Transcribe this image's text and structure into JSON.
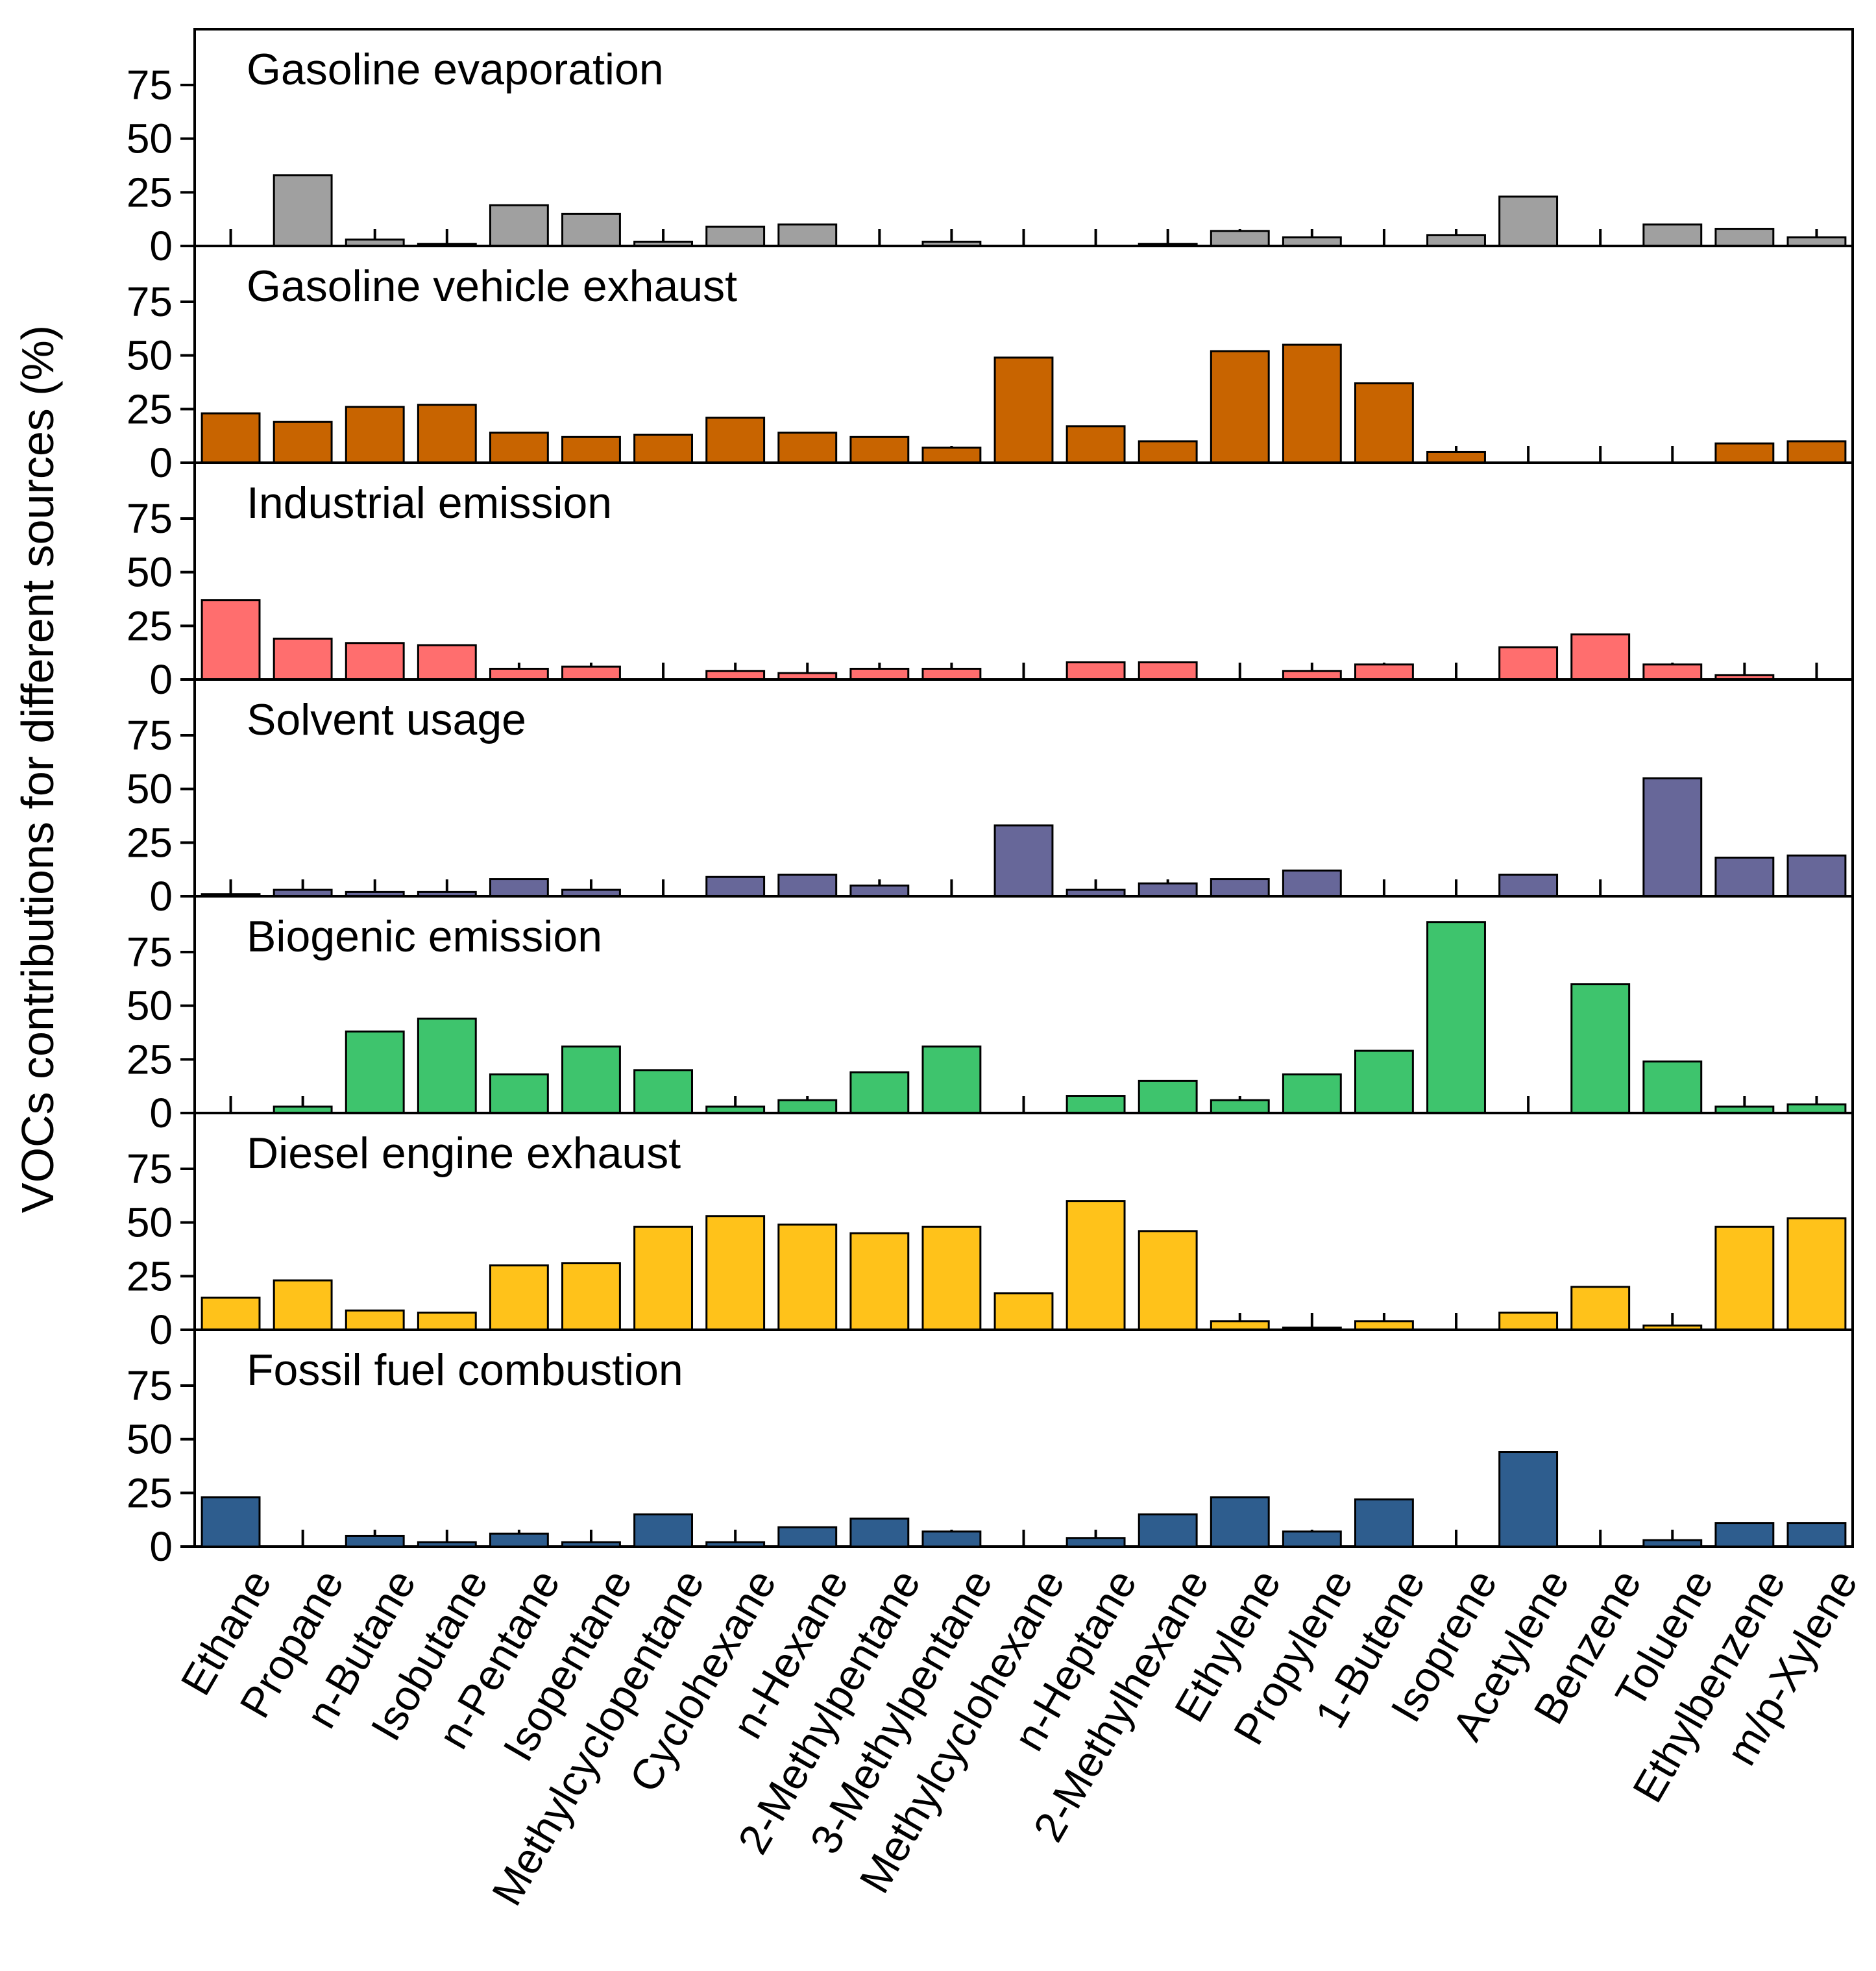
{
  "chart_data": {
    "type": "bar",
    "ylabel": "VOCs contributions for different sources (%)",
    "xlabel": "",
    "ylim": [
      0,
      100
    ],
    "yticks": [
      0,
      25,
      50,
      75
    ],
    "categories": [
      "Ethane",
      "Propane",
      "n-Butane",
      "Isobutane",
      "n-Pentane",
      "Isopentane",
      "Methylcyclopentane",
      "Cyclohexane",
      "n-Hexane",
      "2-Methylpentane",
      "3-Methylpentane",
      "Methylcyclohexane",
      "n-Heptane",
      "2-Methylhexane",
      "Ethylene",
      "Propylene",
      "1-Butene",
      "Isoprene",
      "Acetylene",
      "Benzene",
      "Toluene",
      "Ethylbenzene",
      "m/p-Xylene"
    ],
    "series": [
      {
        "name": "Gasoline evaporation",
        "color": "#a0a0a0",
        "values": [
          0,
          33,
          3,
          1,
          19,
          15,
          2,
          9,
          10,
          0,
          2,
          0,
          0,
          1,
          7,
          4,
          0,
          5,
          23,
          0,
          10,
          8,
          4
        ]
      },
      {
        "name": "Gasoline vehicle exhaust",
        "color": "#c86400",
        "values": [
          23,
          19,
          26,
          27,
          14,
          12,
          13,
          21,
          14,
          12,
          7,
          49,
          17,
          10,
          52,
          55,
          37,
          5,
          0,
          0,
          0,
          9,
          10
        ]
      },
      {
        "name": "Industrial emission",
        "color": "#ff6e6e",
        "values": [
          37,
          19,
          17,
          16,
          5,
          6,
          0,
          4,
          3,
          5,
          5,
          0,
          8,
          8,
          0,
          4,
          7,
          0,
          15,
          21,
          7,
          2,
          0
        ]
      },
      {
        "name": "Solvent usage",
        "color": "#676799",
        "values": [
          1,
          3,
          2,
          2,
          8,
          3,
          0,
          9,
          10,
          5,
          0,
          33,
          3,
          6,
          8,
          12,
          0,
          0,
          10,
          0,
          55,
          18,
          19
        ]
      },
      {
        "name": "Biogenic emission",
        "color": "#3ec46d",
        "values": [
          0,
          3,
          38,
          44,
          18,
          31,
          20,
          3,
          6,
          19,
          31,
          0,
          8,
          15,
          6,
          18,
          29,
          89,
          0,
          60,
          24,
          3,
          4
        ]
      },
      {
        "name": "Diesel engine exhaust",
        "color": "#ffc21a",
        "values": [
          15,
          23,
          9,
          8,
          30,
          31,
          48,
          53,
          49,
          45,
          48,
          17,
          60,
          46,
          4,
          1,
          4,
          0,
          8,
          20,
          2,
          48,
          52
        ]
      },
      {
        "name": "Fossil fuel combustion",
        "color": "#2e5d8e",
        "values": [
          23,
          0,
          5,
          2,
          6,
          2,
          15,
          2,
          9,
          13,
          7,
          0,
          4,
          15,
          23,
          7,
          22,
          0,
          44,
          0,
          3,
          11,
          11
        ]
      }
    ]
  }
}
